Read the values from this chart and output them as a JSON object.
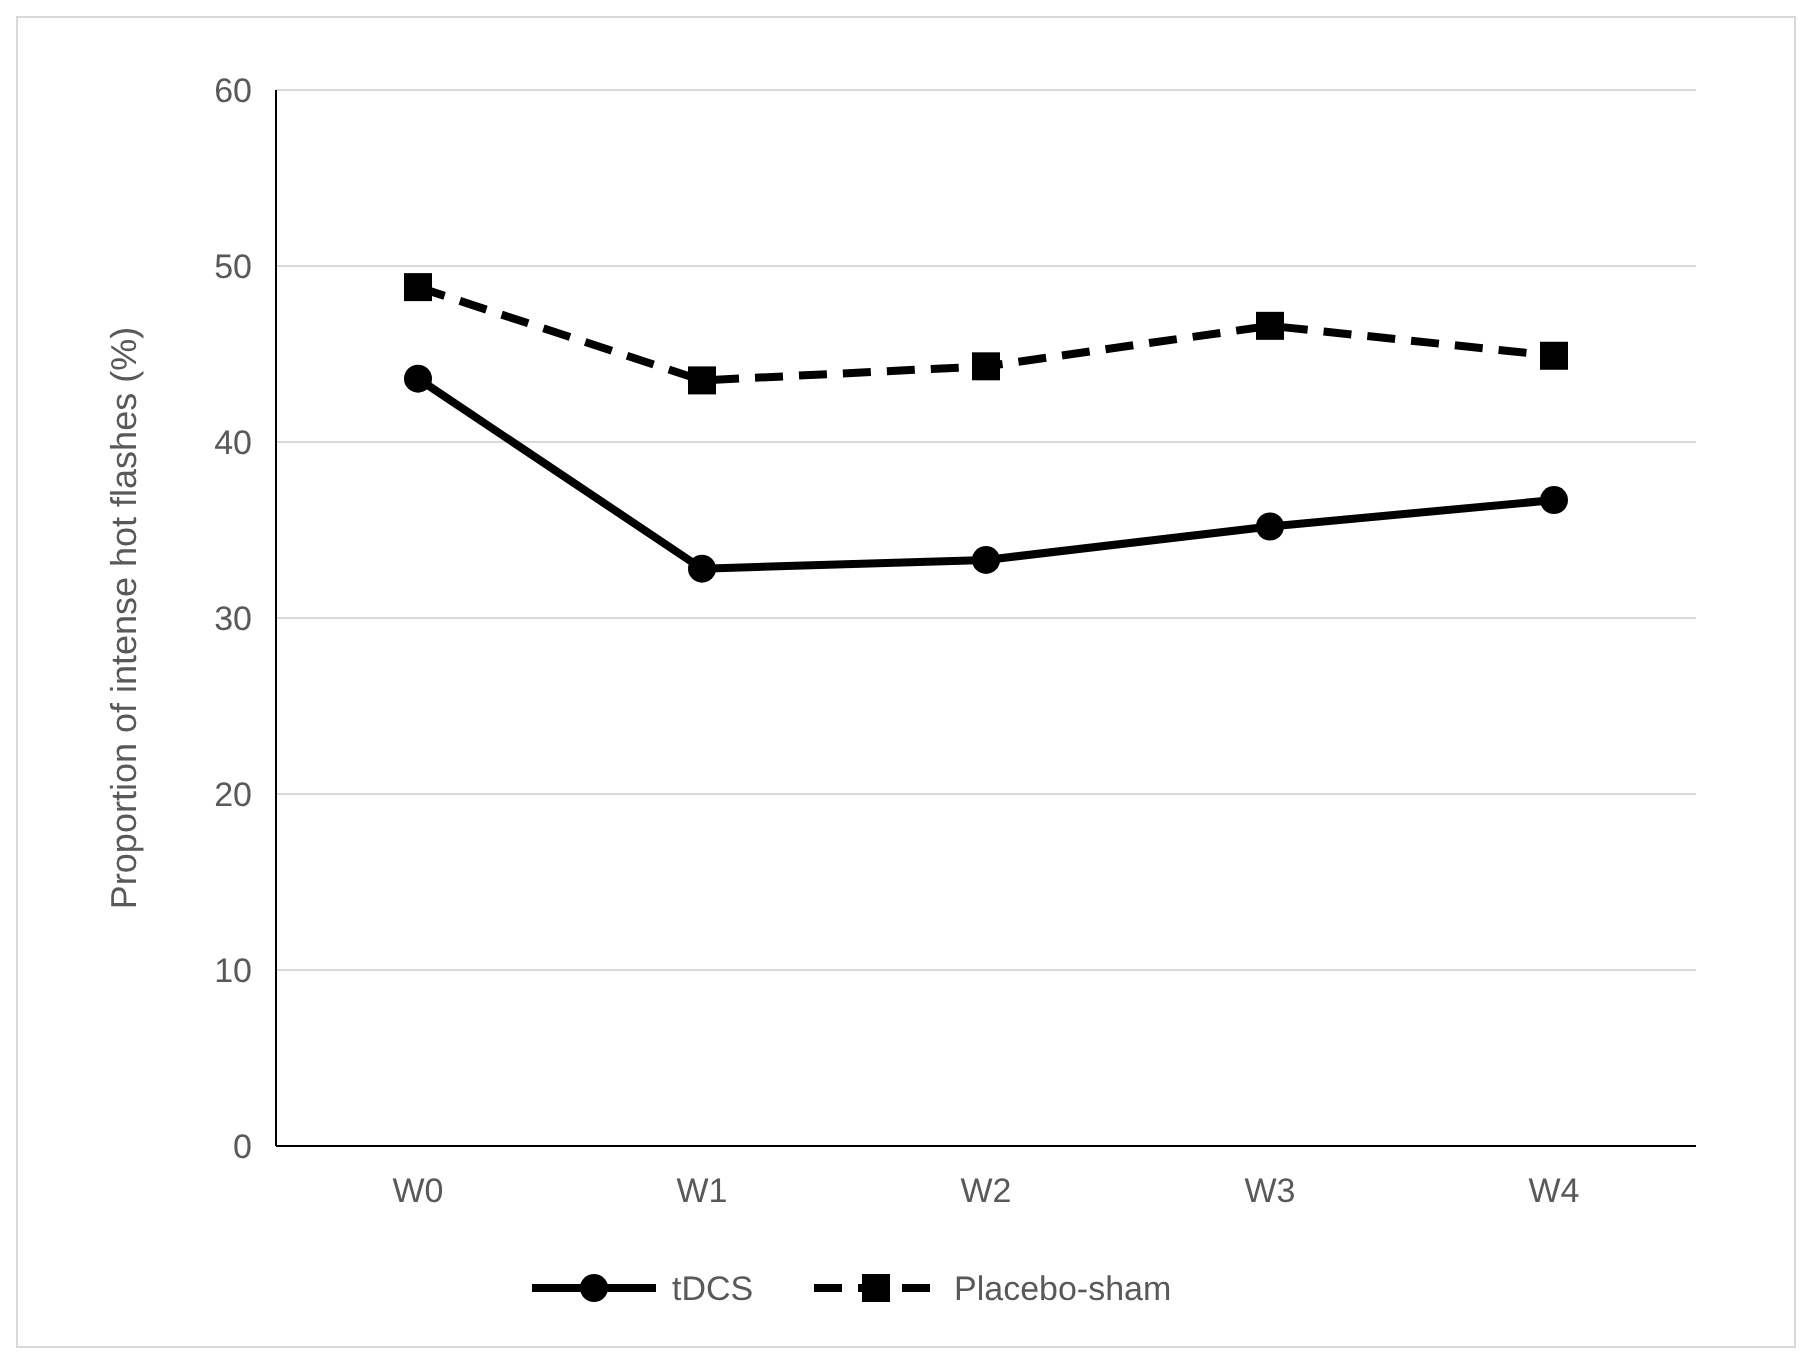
{
  "chart_data": {
    "type": "line",
    "ylabel": "Proportion of intense hot  flashes (%)",
    "categories": [
      "W0",
      "W1",
      "W2",
      "W3",
      "W4"
    ],
    "series": [
      {
        "name": "tDCS",
        "color": "#000000",
        "values": [
          43.6,
          32.8,
          33.3,
          35.2,
          36.7
        ],
        "marker": "circle",
        "line_style": "solid"
      },
      {
        "name": "Placebo-sham",
        "color": "#000000",
        "values": [
          48.8,
          43.5,
          44.3,
          46.6,
          44.9
        ],
        "marker": "square",
        "line_style": "dashed"
      }
    ],
    "ylim": [
      0,
      60
    ],
    "yticks": [
      0,
      10,
      20,
      30,
      40,
      50,
      60
    ],
    "grid": "y",
    "legend": "bottom"
  }
}
